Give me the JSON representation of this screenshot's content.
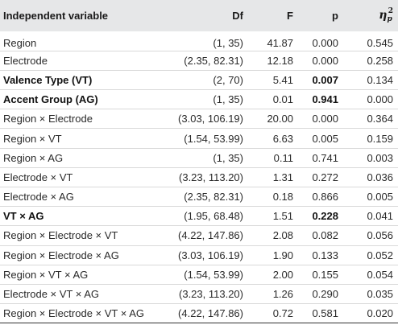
{
  "header": {
    "independent_variable": "Independent variable",
    "df": "Df",
    "f": "F",
    "p": "p",
    "eta_symbol": "η",
    "eta_subscript": "p",
    "eta_superscript": "2"
  },
  "rows": [
    {
      "variable": "Region",
      "df": "(1, 35)",
      "f": "41.87",
      "p": "0.000",
      "eta": "0.545",
      "bold_variable": false,
      "bold_p": false
    },
    {
      "variable": "Electrode",
      "df": "(2.35, 82.31)",
      "f": "12.18",
      "p": "0.000",
      "eta": "0.258",
      "bold_variable": false,
      "bold_p": false
    },
    {
      "variable": "Valence Type (VT)",
      "df": "(2, 70)",
      "f": "5.41",
      "p": "0.007",
      "eta": "0.134",
      "bold_variable": true,
      "bold_p": true
    },
    {
      "variable": "Accent Group (AG)",
      "df": "(1, 35)",
      "f": "0.01",
      "p": "0.941",
      "eta": "0.000",
      "bold_variable": true,
      "bold_p": true
    },
    {
      "variable": "Region × Electrode",
      "df": "(3.03, 106.19)",
      "f": "20.00",
      "p": "0.000",
      "eta": "0.364",
      "bold_variable": false,
      "bold_p": false
    },
    {
      "variable": "Region × VT",
      "df": "(1.54, 53.99)",
      "f": "6.63",
      "p": "0.005",
      "eta": "0.159",
      "bold_variable": false,
      "bold_p": false
    },
    {
      "variable": "Region × AG",
      "df": "(1, 35)",
      "f": "0.11",
      "p": "0.741",
      "eta": "0.003",
      "bold_variable": false,
      "bold_p": false
    },
    {
      "variable": "Electrode × VT",
      "df": "(3.23, 113.20)",
      "f": "1.31",
      "p": "0.272",
      "eta": "0.036",
      "bold_variable": false,
      "bold_p": false
    },
    {
      "variable": "Electrode × AG",
      "df": "(2.35, 82.31)",
      "f": "0.18",
      "p": "0.866",
      "eta": "0.005",
      "bold_variable": false,
      "bold_p": false
    },
    {
      "variable": "VT × AG",
      "df": "(1.95, 68.48)",
      "f": "1.51",
      "p": "0.228",
      "eta": "0.041",
      "bold_variable": true,
      "bold_p": true
    },
    {
      "variable": "Region × Electrode × VT",
      "df": "(4.22, 147.86)",
      "f": "2.08",
      "p": "0.082",
      "eta": "0.056",
      "bold_variable": false,
      "bold_p": false
    },
    {
      "variable": "Region × Electrode × AG",
      "df": "(3.03, 106.19)",
      "f": "1.90",
      "p": "0.133",
      "eta": "0.052",
      "bold_variable": false,
      "bold_p": false
    },
    {
      "variable": "Region × VT × AG",
      "df": "(1.54, 53.99)",
      "f": "2.00",
      "p": "0.155",
      "eta": "0.054",
      "bold_variable": false,
      "bold_p": false
    },
    {
      "variable": "Electrode × VT × AG",
      "df": "(3.23, 113.20)",
      "f": "1.26",
      "p": "0.290",
      "eta": "0.035",
      "bold_variable": false,
      "bold_p": false
    },
    {
      "variable": "Region × Electrode × VT × AG",
      "df": "(4.22, 147.86)",
      "f": "0.72",
      "p": "0.581",
      "eta": "0.020",
      "bold_variable": false,
      "bold_p": false
    }
  ],
  "colors": {
    "header_background": "#e6e7e8",
    "row_divider": "#d9d9d9",
    "text": "#222222"
  }
}
